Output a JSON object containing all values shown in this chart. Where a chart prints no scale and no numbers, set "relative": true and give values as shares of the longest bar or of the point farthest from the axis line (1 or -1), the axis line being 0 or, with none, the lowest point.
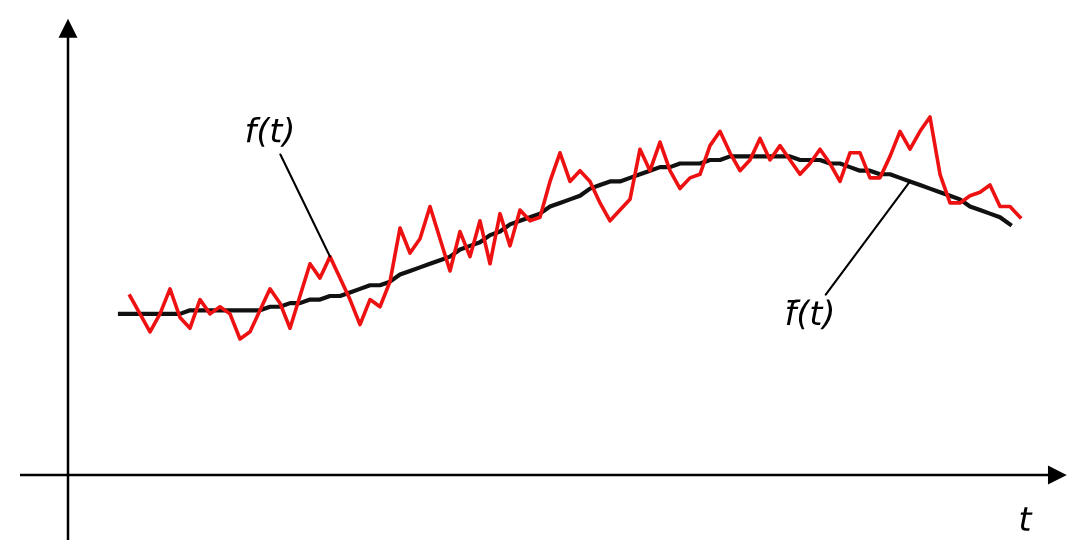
{
  "chart_data": {
    "type": "line",
    "relative": true,
    "xlabel": "t",
    "annotations": [
      "f(t)",
      "f̄(t)"
    ],
    "categories": [
      null,
      null,
      null,
      null,
      null,
      null,
      null,
      null,
      null,
      null,
      null,
      null,
      null,
      null,
      null,
      null,
      null,
      null,
      null,
      null,
      null,
      null,
      null,
      null,
      null,
      null,
      null,
      null,
      null,
      null,
      null,
      null,
      null,
      null,
      null,
      null,
      null,
      null,
      null,
      null,
      null,
      null,
      null,
      null,
      null,
      null,
      null,
      null,
      null,
      null,
      null,
      null,
      null,
      null,
      null,
      null,
      null,
      null,
      null,
      null,
      null,
      null,
      null,
      null,
      null,
      null,
      null,
      null,
      null,
      null,
      null,
      null,
      null,
      null,
      null,
      null,
      null,
      null,
      null,
      null,
      null,
      null,
      null,
      null,
      null,
      null,
      null,
      null,
      null,
      null,
      null
    ],
    "series": [
      {
        "color": "#ee1111",
        "values": [
          null,
          0.5,
          0.45,
          0.4,
          0.45,
          0.52,
          0.44,
          0.41,
          0.49,
          0.45,
          0.47,
          0.45,
          0.38,
          0.4,
          0.46,
          0.52,
          0.48,
          0.41,
          0.5,
          0.59,
          0.55,
          0.61,
          0.55,
          0.49,
          0.42,
          0.49,
          0.47,
          0.54,
          0.69,
          0.62,
          0.66,
          0.75,
          0.66,
          0.57,
          0.68,
          0.61,
          0.71,
          0.59,
          0.73,
          0.64,
          0.74,
          0.71,
          0.72,
          0.82,
          0.9,
          0.82,
          0.85,
          0.82,
          0.76,
          0.71,
          0.74,
          0.77,
          0.91,
          0.85,
          0.93,
          0.85,
          0.8,
          0.83,
          0.84,
          0.92,
          0.96,
          0.9,
          0.85,
          0.88,
          0.94,
          0.88,
          0.92,
          0.88,
          0.84,
          0.87,
          0.91,
          0.87,
          0.82,
          0.9,
          0.9,
          0.83,
          0.83,
          0.89,
          0.96,
          0.91,
          0.96,
          1.0,
          0.84,
          0.76,
          0.76,
          0.78,
          0.79,
          0.81,
          0.75,
          0.75,
          0.72
        ]
      },
      {
        "color": "#111111",
        "values": [
          0.45,
          0.45,
          0.45,
          0.45,
          0.45,
          0.45,
          0.45,
          0.46,
          0.46,
          0.46,
          0.46,
          0.46,
          0.46,
          0.46,
          0.46,
          0.47,
          0.47,
          0.48,
          0.48,
          0.49,
          0.49,
          0.5,
          0.5,
          0.51,
          0.52,
          0.53,
          0.53,
          0.54,
          0.56,
          0.57,
          0.58,
          0.59,
          0.6,
          0.61,
          0.63,
          0.64,
          0.65,
          0.67,
          0.68,
          0.7,
          0.71,
          0.72,
          0.73,
          0.75,
          0.76,
          0.77,
          0.78,
          0.8,
          0.81,
          0.82,
          0.82,
          0.83,
          0.84,
          0.85,
          0.86,
          0.86,
          0.87,
          0.87,
          0.87,
          0.88,
          0.88,
          0.89,
          0.89,
          0.89,
          0.89,
          0.89,
          0.89,
          0.89,
          0.88,
          0.88,
          0.88,
          0.87,
          0.87,
          0.86,
          0.85,
          0.85,
          0.84,
          0.84,
          0.83,
          0.82,
          0.81,
          0.8,
          0.79,
          0.78,
          0.77,
          0.75,
          0.74,
          0.73,
          0.72,
          0.7,
          null
        ]
      }
    ]
  }
}
